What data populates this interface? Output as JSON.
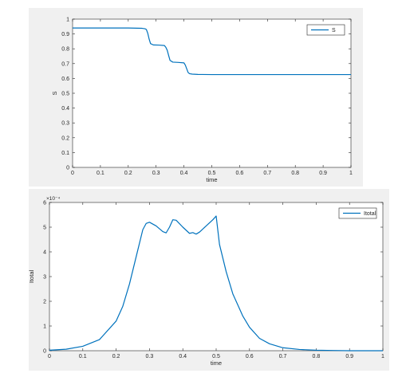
{
  "chart_data": [
    {
      "type": "line",
      "xlabel": "time",
      "ylabel": "S",
      "xlim": [
        0,
        1
      ],
      "ylim": [
        0,
        1
      ],
      "xticks": [
        "0",
        "0.1",
        "0.2",
        "0.3",
        "0.4",
        "0.5",
        "0.6",
        "0.7",
        "0.8",
        "0.9",
        "1"
      ],
      "yticks": [
        "0",
        "0.1",
        "0.2",
        "0.3",
        "0.4",
        "0.5",
        "0.6",
        "0.7",
        "0.8",
        "0.9",
        "1"
      ],
      "legend_position": "top-right",
      "color": "#0072BD",
      "series": [
        {
          "name": "S",
          "x": [
            0,
            0.1,
            0.2,
            0.25,
            0.26,
            0.265,
            0.27,
            0.275,
            0.28,
            0.29,
            0.31,
            0.33,
            0.335,
            0.34,
            0.345,
            0.35,
            0.36,
            0.38,
            0.4,
            0.405,
            0.41,
            0.415,
            0.42,
            0.43,
            0.45,
            0.5,
            0.6,
            0.7,
            0.8,
            0.9,
            1
          ],
          "y": [
            0.94,
            0.94,
            0.94,
            0.938,
            0.935,
            0.93,
            0.905,
            0.865,
            0.835,
            0.826,
            0.825,
            0.822,
            0.81,
            0.79,
            0.755,
            0.722,
            0.71,
            0.708,
            0.705,
            0.69,
            0.665,
            0.64,
            0.632,
            0.629,
            0.627,
            0.626,
            0.626,
            0.626,
            0.626,
            0.626,
            0.626
          ]
        }
      ]
    },
    {
      "type": "line",
      "xlabel": "time",
      "ylabel": "Itotal",
      "exponent_label": "×10⁻⁴",
      "xlim": [
        0,
        1
      ],
      "ylim": [
        0,
        6
      ],
      "xticks": [
        "0",
        "0.1",
        "0.2",
        "0.3",
        "0.4",
        "0.5",
        "0.6",
        "0.7",
        "0.8",
        "0.9",
        "1"
      ],
      "yticks": [
        "0",
        "1",
        "2",
        "3",
        "4",
        "5",
        "6"
      ],
      "legend_position": "top-right",
      "color": "#0072BD",
      "series": [
        {
          "name": "Itotal",
          "x": [
            0,
            0.05,
            0.1,
            0.15,
            0.2,
            0.22,
            0.24,
            0.26,
            0.28,
            0.29,
            0.3,
            0.32,
            0.34,
            0.35,
            0.36,
            0.37,
            0.38,
            0.4,
            0.42,
            0.43,
            0.44,
            0.45,
            0.47,
            0.49,
            0.5,
            0.51,
            0.53,
            0.55,
            0.58,
            0.6,
            0.63,
            0.66,
            0.7,
            0.75,
            0.8,
            0.85,
            0.9,
            1
          ],
          "y": [
            0.02,
            0.06,
            0.18,
            0.45,
            1.2,
            1.8,
            2.7,
            3.8,
            4.9,
            5.15,
            5.2,
            5.05,
            4.82,
            4.77,
            5.0,
            5.3,
            5.28,
            5.0,
            4.75,
            4.78,
            4.72,
            4.8,
            5.05,
            5.3,
            5.45,
            4.3,
            3.2,
            2.3,
            1.4,
            0.95,
            0.5,
            0.28,
            0.12,
            0.05,
            0.02,
            0.01,
            0.0,
            0.0
          ]
        }
      ]
    }
  ]
}
